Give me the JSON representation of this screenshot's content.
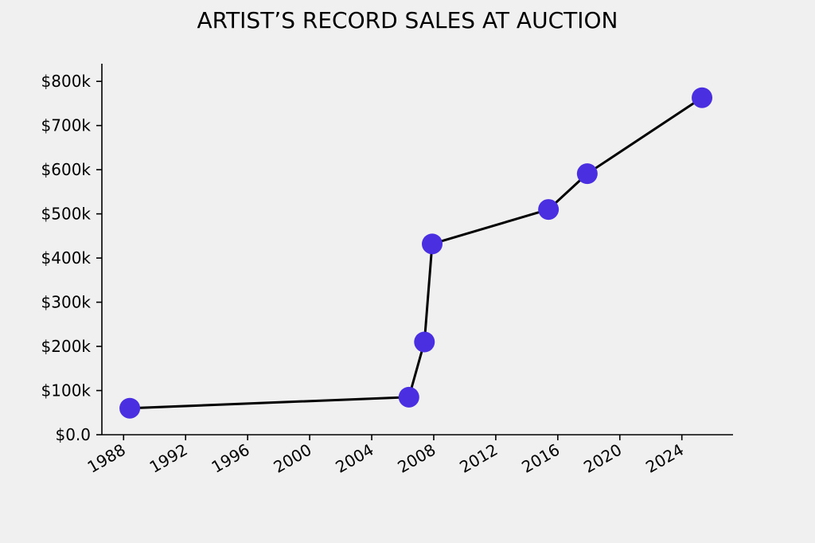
{
  "chart_data": {
    "type": "line",
    "title": "ARTIST’S RECORD SALES AT AUCTION",
    "xlabel": "",
    "ylabel": "",
    "x_tick_labels": [
      "1988",
      "1992",
      "1996",
      "2000",
      "2004",
      "2008",
      "2012",
      "2016",
      "2020",
      "2024"
    ],
    "y_tick_labels": [
      "$0.0",
      "$100k",
      "$200k",
      "$300k",
      "$400k",
      "$500k",
      "$600k",
      "$700k",
      "$800k"
    ],
    "xlim": [
      1986.6,
      2027.3
    ],
    "ylim": [
      0,
      840000
    ],
    "grid": false,
    "series": [
      {
        "x": [
          1988.4,
          2006.4,
          2007.4,
          2007.9,
          2015.4,
          2017.9,
          2025.3
        ],
        "values": [
          60000,
          85000,
          210000,
          432000,
          510000,
          591000,
          763000
        ],
        "line_color": "#000000",
        "marker_color": "#4a2fe0"
      }
    ]
  }
}
